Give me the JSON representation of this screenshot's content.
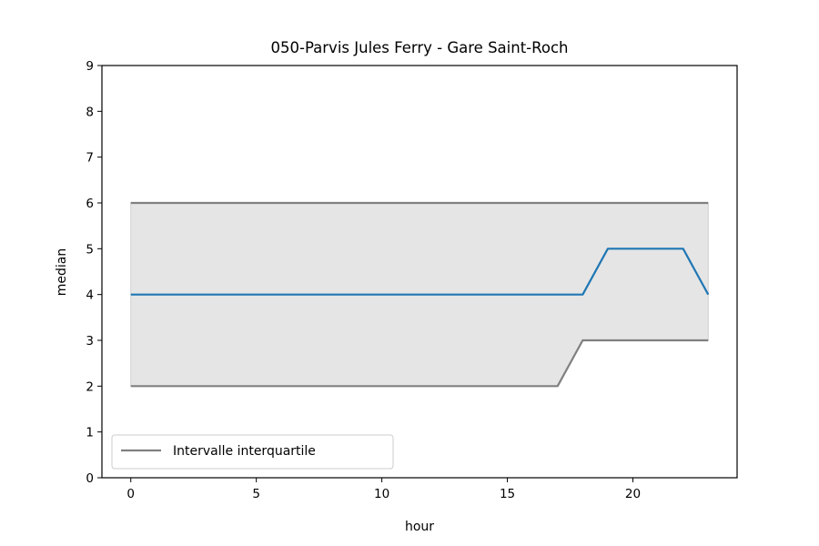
{
  "chart_data": {
    "type": "line",
    "title": "050-Parvis Jules Ferry - Gare Saint-Roch",
    "xlabel": "hour",
    "ylabel": "median",
    "xlim": [
      -1.15,
      24.15
    ],
    "ylim": [
      0,
      9
    ],
    "xticks": [
      0,
      5,
      10,
      15,
      20
    ],
    "yticks": [
      0,
      1,
      2,
      3,
      4,
      5,
      6,
      7,
      8,
      9
    ],
    "grid": false,
    "legend_placement": "lower-left",
    "x": [
      0,
      1,
      2,
      3,
      4,
      5,
      6,
      7,
      8,
      9,
      10,
      11,
      12,
      13,
      14,
      15,
      16,
      17,
      18,
      19,
      20,
      21,
      22,
      23
    ],
    "median": [
      4,
      4,
      4,
      4,
      4,
      4,
      4,
      4,
      4,
      4,
      4,
      4,
      4,
      4,
      4,
      4,
      4,
      4,
      4,
      5,
      5,
      5,
      5,
      4
    ],
    "q1": [
      2,
      2,
      2,
      2,
      2,
      2,
      2,
      2,
      2,
      2,
      2,
      2,
      2,
      2,
      2,
      2,
      2,
      2,
      3,
      3,
      3,
      3,
      3,
      3
    ],
    "q3": [
      6,
      6,
      6,
      6,
      6,
      6,
      6,
      6,
      6,
      6,
      6,
      6,
      6,
      6,
      6,
      6,
      6,
      6,
      6,
      6,
      6,
      6,
      6,
      6
    ],
    "legend": [
      {
        "label": "Intervalle interquartile",
        "color": "#808080"
      }
    ],
    "colors": {
      "median": "#1f77b4",
      "quartiles": "#808080",
      "band_fill": "#e5e5e5"
    }
  }
}
